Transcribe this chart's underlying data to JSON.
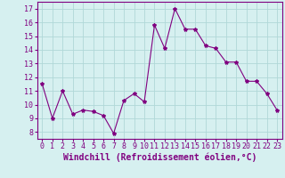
{
  "x": [
    0,
    1,
    2,
    3,
    4,
    5,
    6,
    7,
    8,
    9,
    10,
    11,
    12,
    13,
    14,
    15,
    16,
    17,
    18,
    19,
    20,
    21,
    22,
    23
  ],
  "y": [
    11.5,
    9.0,
    11.0,
    9.3,
    9.6,
    9.5,
    9.2,
    7.9,
    10.3,
    10.8,
    10.2,
    15.8,
    14.1,
    17.0,
    15.5,
    15.5,
    14.3,
    14.1,
    13.1,
    13.1,
    11.7,
    11.7,
    10.8,
    9.6
  ],
  "line_color": "#800080",
  "marker": "*",
  "marker_size": 3,
  "bg_color": "#d6f0f0",
  "grid_color": "#b0d8d8",
  "xlabel": "Windchill (Refroidissement éolien,°C)",
  "xlabel_fontsize": 7,
  "tick_fontsize": 6,
  "xlim": [
    -0.5,
    23.5
  ],
  "ylim": [
    7.5,
    17.5
  ],
  "yticks": [
    8,
    9,
    10,
    11,
    12,
    13,
    14,
    15,
    16,
    17
  ],
  "xticks": [
    0,
    1,
    2,
    3,
    4,
    5,
    6,
    7,
    8,
    9,
    10,
    11,
    12,
    13,
    14,
    15,
    16,
    17,
    18,
    19,
    20,
    21,
    22,
    23
  ]
}
